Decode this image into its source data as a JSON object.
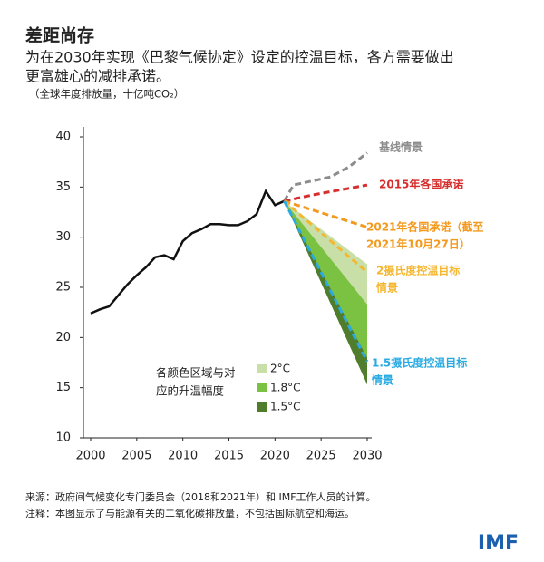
{
  "chart_data": {
    "type": "line",
    "title": "差距尚存",
    "subtitle": [
      "为在2030年实现《巴黎气候协定》设定的控温目标，各方需要做出",
      "更富雄心的减排承诺。"
    ],
    "unit": "（全球年度排放量，十亿吨CO₂）",
    "xlim": [
      2000,
      2030
    ],
    "xticks": [
      2000,
      2005,
      2010,
      2015,
      2020,
      2025,
      2030
    ],
    "ylim": [
      10,
      40
    ],
    "yticks": [
      10,
      15,
      20,
      25,
      30,
      35,
      40
    ],
    "series": [
      {
        "color": "#111111",
        "dash": false,
        "x": [
          2000,
          2001,
          2002,
          2003,
          2004,
          2005,
          2006,
          2007,
          2008,
          2009,
          2010,
          2011,
          2012,
          2013,
          2014,
          2015,
          2016,
          2017,
          2018,
          2019,
          2020,
          2021
        ],
        "values": [
          22.4,
          22.8,
          23.1,
          24.2,
          25.3,
          26.2,
          27.0,
          28.0,
          28.2,
          27.8,
          29.6,
          30.4,
          30.8,
          31.3,
          31.3,
          31.2,
          31.2,
          31.6,
          32.3,
          34.6,
          33.2,
          33.6
        ]
      },
      {
        "label": [
          "基线情景"
        ],
        "color": "#8c8c8c",
        "dash": true,
        "x": [
          2021,
          2022,
          2024,
          2026,
          2028,
          2030
        ],
        "values": [
          33.6,
          35.2,
          35.6,
          36.0,
          37.0,
          38.4
        ]
      },
      {
        "label": [
          "2015年各国承诺"
        ],
        "color": "#d62d2d",
        "dash": true,
        "x": [
          2021,
          2024,
          2027,
          2030
        ],
        "values": [
          33.6,
          34.2,
          34.7,
          35.2
        ]
      },
      {
        "label": [
          "2021年各国承诺（截至",
          "2021年10月27日）"
        ],
        "color": "#f39a1e",
        "dash": true,
        "x": [
          2021,
          2030
        ],
        "values": [
          33.6,
          31.0
        ]
      },
      {
        "label": [
          "2摄氏度控温目标",
          "情景"
        ],
        "color": "#f5b731",
        "dash": true,
        "x": [
          2021,
          2030
        ],
        "values": [
          33.6,
          26.5
        ]
      },
      {
        "label": [
          "1.5摄氏度控温目标",
          "情景"
        ],
        "color": "#29abe2",
        "dash": true,
        "x": [
          2021,
          2030
        ],
        "values": [
          33.6,
          17.6
        ]
      }
    ],
    "areas": [
      {
        "name": "2°C",
        "color": "#c8e0a8",
        "x": [
          2021,
          2030
        ],
        "upper": [
          33.6,
          27.3
        ],
        "lower": [
          33.6,
          23.3
        ]
      },
      {
        "name": "1.8°C",
        "color": "#7cc242",
        "x": [
          2021,
          2030
        ],
        "upper": [
          33.6,
          23.3
        ],
        "lower": [
          33.6,
          18.0
        ]
      },
      {
        "name": "1.5°C",
        "color": "#4f7d2c",
        "x": [
          2021,
          2030
        ],
        "upper": [
          33.6,
          18.0
        ],
        "lower": [
          33.6,
          15.3
        ]
      }
    ],
    "legend_title": [
      "各颜色区域与对",
      "应的升温幅度"
    ],
    "source": "来源：政府间气候变化专门委员会（2018和2021年）和 IMF工作人员的计算。",
    "note": "注释：本图显示了与能源有关的二氧化碳排放量，不包括国际航空和海运。",
    "logo": "IMF"
  }
}
